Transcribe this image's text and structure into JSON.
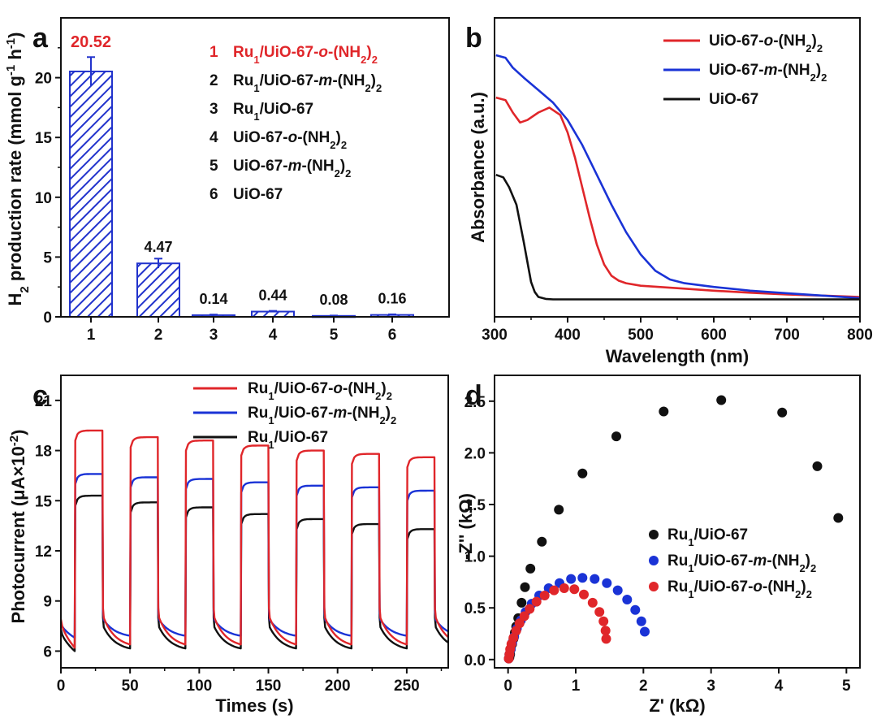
{
  "colors": {
    "red": "#e0262a",
    "blue": "#1a33d6",
    "black": "#111111",
    "bar_blue": "#2233cc"
  },
  "chart_data": [
    {
      "panel": "a",
      "type": "bar",
      "categories": [
        "1",
        "2",
        "3",
        "4",
        "5",
        "6"
      ],
      "values": [
        20.52,
        4.47,
        0.14,
        0.44,
        0.08,
        0.16
      ],
      "errors": [
        1.2,
        0.4,
        0.05,
        0.06,
        0.03,
        0.05
      ],
      "value_labels": [
        "20.52",
        "4.47",
        "0.14",
        "0.44",
        "0.08",
        "0.16"
      ],
      "highlight_index": 0,
      "ylim": [
        0,
        25
      ],
      "yticks": [
        0,
        5,
        10,
        15,
        20
      ],
      "ytick_labels": [
        "0",
        "5",
        "10",
        "15",
        "20"
      ],
      "ylabel_parts": [
        "H",
        "2",
        " production rate (mmol g",
        "-1",
        " h",
        "-1",
        ")"
      ],
      "xlabel": "",
      "legend": [
        {
          "num": "1",
          "a": "Ru",
          "sub1": "1",
          "b": "/UiO-67-",
          "it": "o",
          "c": "-(NH",
          "sub2": "2",
          "d": ")",
          "sub3": "2",
          "highlight": true
        },
        {
          "num": "2",
          "a": "Ru",
          "sub1": "1",
          "b": "/UiO-67-",
          "it": "m",
          "c": "-(NH",
          "sub2": "2",
          "d": ")",
          "sub3": "2",
          "highlight": false
        },
        {
          "num": "3",
          "a": "Ru",
          "sub1": "1",
          "b": "/UiO-67",
          "it": "",
          "c": "",
          "sub2": "",
          "d": "",
          "sub3": "",
          "highlight": false
        },
        {
          "num": "4",
          "a": "UiO-67-",
          "sub1": "",
          "b": "",
          "it": "o",
          "c": "-(NH",
          "sub2": "2",
          "d": ")",
          "sub3": "2",
          "highlight": false
        },
        {
          "num": "5",
          "a": "UiO-67-",
          "sub1": "",
          "b": "",
          "it": "m",
          "c": "-(NH",
          "sub2": "2",
          "d": ")",
          "sub3": "2",
          "highlight": false
        },
        {
          "num": "6",
          "a": "UiO-67",
          "sub1": "",
          "b": "",
          "it": "",
          "c": "",
          "sub2": "",
          "d": "",
          "sub3": "",
          "highlight": false
        }
      ]
    },
    {
      "panel": "b",
      "type": "line",
      "xlabel": "Wavelength (nm)",
      "ylabel": "Absorbance (a.u.)",
      "xlim": [
        300,
        800
      ],
      "xticks": [
        300,
        400,
        500,
        600,
        700,
        800
      ],
      "xtick_labels": [
        "300",
        "400",
        "500",
        "600",
        "700",
        "800"
      ],
      "ylim": [
        0,
        1.2
      ],
      "yticks_shown": false,
      "series": [
        {
          "name": "UiO-67-o-(NH2)2",
          "color": "red",
          "label": {
            "a": "UiO-67-",
            "it": "o",
            "c": "-(NH",
            "sub2": "2",
            "d": ")",
            "sub3": "2"
          },
          "x": [
            302,
            315,
            325,
            335,
            345,
            360,
            375,
            390,
            400,
            410,
            420,
            430,
            440,
            450,
            460,
            470,
            480,
            500,
            550,
            600,
            650,
            700,
            750,
            800
          ],
          "y": [
            0.88,
            0.87,
            0.82,
            0.78,
            0.79,
            0.82,
            0.84,
            0.81,
            0.74,
            0.64,
            0.52,
            0.4,
            0.29,
            0.21,
            0.165,
            0.145,
            0.135,
            0.125,
            0.115,
            0.105,
            0.097,
            0.09,
            0.085,
            0.08
          ]
        },
        {
          "name": "UiO-67-m-(NH2)2",
          "color": "blue",
          "label": {
            "a": "UiO-67-",
            "it": "m",
            "c": "-(NH",
            "sub2": "2",
            "d": ")",
            "sub3": "2"
          },
          "x": [
            302,
            315,
            325,
            340,
            360,
            380,
            400,
            420,
            440,
            460,
            480,
            500,
            520,
            540,
            560,
            600,
            650,
            700,
            750,
            800
          ],
          "y": [
            1.05,
            1.04,
            1.0,
            0.96,
            0.91,
            0.86,
            0.79,
            0.69,
            0.57,
            0.45,
            0.34,
            0.25,
            0.185,
            0.15,
            0.135,
            0.12,
            0.105,
            0.095,
            0.085,
            0.075
          ]
        },
        {
          "name": "UiO-67",
          "color": "black",
          "label": {
            "a": "UiO-67",
            "it": "",
            "c": "",
            "sub2": "",
            "d": "",
            "sub3": ""
          },
          "x": [
            302,
            312,
            320,
            330,
            340,
            350,
            355,
            360,
            370,
            380,
            400,
            500,
            600,
            700,
            800
          ],
          "y": [
            0.57,
            0.56,
            0.52,
            0.45,
            0.3,
            0.14,
            0.1,
            0.08,
            0.072,
            0.07,
            0.07,
            0.07,
            0.07,
            0.07,
            0.07
          ]
        }
      ]
    },
    {
      "panel": "c",
      "type": "line",
      "xlabel": "Times (s)",
      "ylabel_parts": [
        "Photocurrent (",
        "μA×10",
        "-2",
        ")"
      ],
      "xlim": [
        0,
        280
      ],
      "xticks": [
        0,
        50,
        100,
        150,
        200,
        250
      ],
      "xtick_labels": [
        "0",
        "50",
        "100",
        "150",
        "200",
        "250"
      ],
      "ylim": [
        5,
        22.5
      ],
      "yticks": [
        6,
        9,
        12,
        15,
        18,
        21
      ],
      "ytick_labels": [
        "6",
        "9",
        "12",
        "15",
        "18",
        "21"
      ],
      "light_on_times": [
        10,
        50,
        90,
        130,
        170,
        210,
        250
      ],
      "light_period_s": 40,
      "light_on_duration_s": 20,
      "series": [
        {
          "name": "Ru1/UiO-67-o-(NH2)2",
          "color": "red",
          "label": {
            "a": "Ru",
            "sub1": "1",
            "b": "/UiO-67-",
            "it": "o",
            "c": "-(NH",
            "sub2": "2",
            "d": ")",
            "sub3": "2"
          },
          "on_levels": [
            19.2,
            18.8,
            18.6,
            18.3,
            18.0,
            17.8,
            17.6
          ],
          "off_start": 8.2,
          "off_end": 6.2
        },
        {
          "name": "Ru1/UiO-67-m-(NH2)2",
          "color": "blue",
          "label": {
            "a": "Ru",
            "sub1": "1",
            "b": "/UiO-67-",
            "it": "m",
            "c": "-(NH",
            "sub2": "2",
            "d": ")",
            "sub3": "2"
          },
          "on_levels": [
            16.6,
            16.4,
            16.3,
            16.1,
            15.9,
            15.8,
            15.6
          ],
          "off_start": 8.0,
          "off_end": 6.8
        },
        {
          "name": "Ru1/UiO-67",
          "color": "black",
          "label": {
            "a": "Ru",
            "sub1": "1",
            "b": "/UiO-67",
            "it": "",
            "c": "",
            "sub2": "",
            "d": "",
            "sub3": ""
          },
          "on_levels": [
            15.3,
            14.9,
            14.6,
            14.2,
            13.9,
            13.6,
            13.3
          ],
          "off_start": 7.6,
          "off_end": 6.0
        }
      ]
    },
    {
      "panel": "d",
      "type": "scatter",
      "xlabel": "Z' (kΩ)",
      "ylabel": "-Z'' (kΩ)",
      "xlim": [
        -0.2,
        5.2
      ],
      "xticks": [
        0,
        1,
        2,
        3,
        4,
        5
      ],
      "xtick_labels": [
        "0",
        "1",
        "2",
        "3",
        "4",
        "5"
      ],
      "ylim": [
        -0.08,
        2.75
      ],
      "yticks": [
        0.0,
        0.5,
        1.0,
        1.5,
        2.0,
        2.5
      ],
      "ytick_labels": [
        "0.0",
        "0.5",
        "1.0",
        "1.5",
        "2.0",
        "2.5"
      ],
      "series": [
        {
          "name": "Ru1/UiO-67",
          "color": "black",
          "label": {
            "a": "Ru",
            "sub1": "1",
            "b": "/UiO-67",
            "it": "",
            "c": "",
            "sub2": "",
            "d": "",
            "sub3": ""
          },
          "x": [
            0.02,
            0.03,
            0.04,
            0.06,
            0.08,
            0.1,
            0.12,
            0.15,
            0.2,
            0.25,
            0.33,
            0.5,
            0.75,
            1.1,
            1.6,
            2.3,
            3.15,
            4.05,
            4.57,
            4.88
          ],
          "y": [
            0.02,
            0.05,
            0.1,
            0.15,
            0.2,
            0.26,
            0.32,
            0.4,
            0.55,
            0.7,
            0.88,
            1.14,
            1.45,
            1.8,
            2.16,
            2.4,
            2.51,
            2.39,
            1.87,
            1.37
          ]
        },
        {
          "name": "Ru1/UiO-67-m-(NH2)2",
          "color": "blue",
          "label": {
            "a": "Ru",
            "sub1": "1",
            "b": "/UiO-67-",
            "it": "m",
            "c": "-(NH",
            "sub2": "2",
            "d": ")",
            "sub3": "2"
          },
          "x": [
            0.01,
            0.02,
            0.04,
            0.06,
            0.09,
            0.13,
            0.19,
            0.26,
            0.35,
            0.46,
            0.6,
            0.76,
            0.93,
            1.1,
            1.28,
            1.46,
            1.62,
            1.76,
            1.88,
            1.97,
            2.02
          ],
          "y": [
            0.01,
            0.05,
            0.1,
            0.16,
            0.22,
            0.3,
            0.38,
            0.46,
            0.54,
            0.62,
            0.69,
            0.74,
            0.78,
            0.79,
            0.78,
            0.74,
            0.67,
            0.58,
            0.48,
            0.37,
            0.27
          ]
        },
        {
          "name": "Ru1/UiO-67-o-(NH2)2",
          "color": "red",
          "label": {
            "a": "Ru",
            "sub1": "1",
            "b": "/UiO-67-",
            "it": "o",
            "c": "-(NH",
            "sub2": "2",
            "d": ")",
            "sub3": "2"
          },
          "x": [
            0.01,
            0.02,
            0.03,
            0.05,
            0.08,
            0.12,
            0.17,
            0.24,
            0.32,
            0.42,
            0.54,
            0.68,
            0.83,
            0.98,
            1.12,
            1.25,
            1.35,
            1.41,
            1.44,
            1.45
          ],
          "y": [
            0.01,
            0.05,
            0.1,
            0.15,
            0.21,
            0.28,
            0.35,
            0.42,
            0.49,
            0.56,
            0.62,
            0.67,
            0.69,
            0.68,
            0.63,
            0.55,
            0.46,
            0.37,
            0.28,
            0.2
          ]
        }
      ]
    }
  ]
}
